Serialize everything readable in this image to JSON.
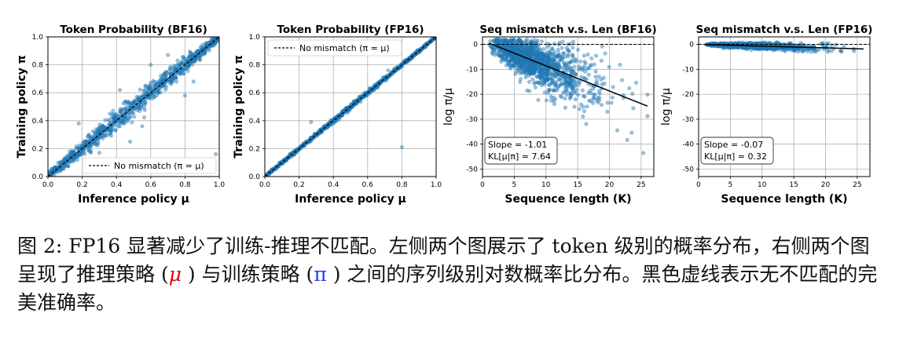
{
  "chart_data": [
    {
      "type": "scatter",
      "title": "Token Probability (BF16)",
      "xlabel": "Inference policy μ",
      "ylabel": "Training policy π",
      "xlim": [
        0,
        1
      ],
      "ylim": [
        0,
        1
      ],
      "xticks": [
        "0.0",
        "0.2",
        "0.4",
        "0.6",
        "0.8",
        "1.0"
      ],
      "yticks": [
        "0.0",
        "0.2",
        "0.4",
        "0.6",
        "0.8",
        "1.0"
      ],
      "grid": true,
      "legend": {
        "placement": "bottom-right",
        "label": "No mismatch (π = μ)"
      },
      "reference_line": {
        "x": [
          0,
          1
        ],
        "y": [
          0,
          1
        ],
        "style": "dashed"
      },
      "spread": 0.035,
      "outliers": [
        [
          0.98,
          0.16
        ],
        [
          0.42,
          0.62
        ],
        [
          0.55,
          0.36
        ],
        [
          0.6,
          0.8
        ],
        [
          0.48,
          0.25
        ],
        [
          0.8,
          0.58
        ],
        [
          0.18,
          0.38
        ],
        [
          0.7,
          0.87
        ],
        [
          0.3,
          0.17
        ],
        [
          0.85,
          0.68
        ]
      ]
    },
    {
      "type": "scatter",
      "title": "Token Probability (FP16)",
      "xlabel": "Inference policy μ",
      "ylabel": "Training policy π",
      "xlim": [
        0,
        1
      ],
      "ylim": [
        0,
        1
      ],
      "xticks": [
        "0.0",
        "0.2",
        "0.4",
        "0.6",
        "0.8",
        "1.0"
      ],
      "yticks": [
        "0.0",
        "0.2",
        "0.4",
        "0.6",
        "0.8",
        "1.0"
      ],
      "grid": true,
      "legend": {
        "placement": "top-left",
        "label": "No mismatch (π = μ)"
      },
      "reference_line": {
        "x": [
          0,
          1
        ],
        "y": [
          0,
          1
        ],
        "style": "dashed"
      },
      "spread": 0.008,
      "outliers": [
        [
          0.8,
          0.21
        ],
        [
          0.27,
          0.39
        ],
        [
          0.72,
          0.76
        ]
      ]
    },
    {
      "type": "scatter",
      "title": "Seq mismatch v.s. Len (BF16)",
      "xlabel": "Sequence length (K)",
      "ylabel": "log π/μ",
      "xlim": [
        0,
        27
      ],
      "ylim": [
        -53,
        3
      ],
      "xticks": [
        0,
        5,
        10,
        15,
        20,
        25
      ],
      "yticks": [
        0,
        -10,
        -20,
        -30,
        -40,
        -50
      ],
      "grid": true,
      "reference_line": {
        "y": 0,
        "style": "dashed"
      },
      "fit": {
        "slope": -1.01,
        "intercept": 1.5,
        "x_range": [
          1,
          26
        ]
      },
      "spread": 6,
      "annotation": {
        "placement": "bottom-left",
        "lines": [
          "Slope = -1.01",
          "KL[μ|π] = 7.64"
        ]
      }
    },
    {
      "type": "scatter",
      "title": "Seq mismatch v.s. Len (FP16)",
      "xlabel": "Sequence length (K)",
      "ylabel": "log π/μ",
      "xlim": [
        0,
        27
      ],
      "ylim": [
        -53,
        3
      ],
      "xticks": [
        0,
        5,
        10,
        15,
        20,
        25
      ],
      "yticks": [
        0,
        -10,
        -20,
        -30,
        -40,
        -50
      ],
      "grid": true,
      "reference_line": {
        "y": 0,
        "style": "dashed"
      },
      "fit": {
        "slope": -0.07,
        "intercept": 0,
        "x_range": [
          1,
          26
        ]
      },
      "spread": 0.7,
      "annotation": {
        "placement": "bottom-left",
        "lines": [
          "Slope = -0.07",
          "KL[μ|π] = 0.32"
        ]
      }
    }
  ],
  "caption": {
    "prefix": "图 2: FP16 显著减少了训练-推理不匹配。左侧两个图展示了 token 级别的概率分布，右侧两个图呈现了推理策略 (",
    "mu": "μ",
    "middle": " ) 与训练策略 (",
    "pi": "π",
    "suffix": " ) 之间的序列级别对数概率比分布。黑色虚线表示无不匹配的完美准确率。"
  },
  "colors": {
    "points": "#1f77b4",
    "grid": "#b0b0b0",
    "fit": "#000000"
  }
}
